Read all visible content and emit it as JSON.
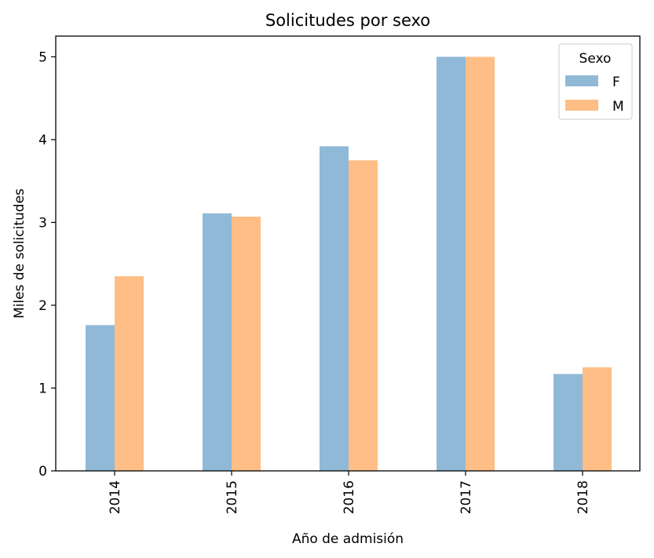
{
  "chart_data": {
    "type": "bar",
    "title": "Solicitudes por sexo",
    "xlabel": "Año de admisión",
    "ylabel": "Miles de solicitudes",
    "categories": [
      "2014",
      "2015",
      "2016",
      "2017",
      "2018"
    ],
    "series": [
      {
        "name": "F",
        "values": [
          1.76,
          3.11,
          3.92,
          5.0,
          1.17
        ],
        "color": "#90b9d8"
      },
      {
        "name": "M",
        "values": [
          2.35,
          3.07,
          3.75,
          5.0,
          1.25
        ],
        "color": "#febe85"
      }
    ],
    "ylim": [
      0,
      5.25
    ],
    "yticks": [
      0,
      1,
      2,
      3,
      4,
      5
    ],
    "grid": false,
    "legend": {
      "title": "Sexo",
      "placement": "top-right"
    }
  }
}
